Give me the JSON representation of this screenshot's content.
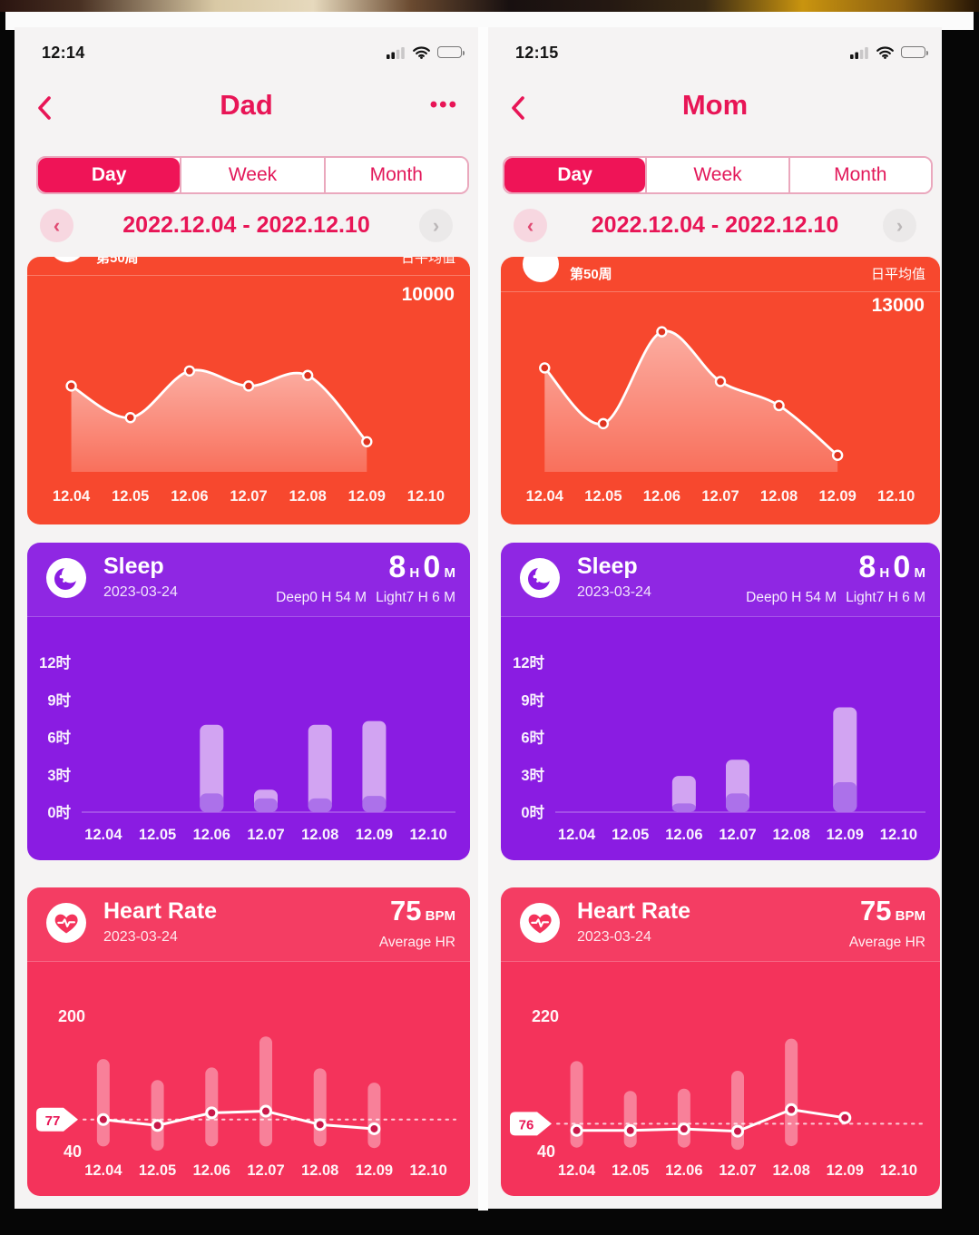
{
  "colors": {
    "accent": "#e81556",
    "tab_active_bg": "#ef1457",
    "steps_card_bg": "#f7482e",
    "sleep_card_bg": "#8a1ce2",
    "sleep_bar_light": "#d5aaf3",
    "sleep_bar_deep": "#aa6fe9",
    "hr_card_bg": "#f4335b",
    "steps_point_fill": "#de3420",
    "hr_point_fill": "#c9194a"
  },
  "panels": [
    {
      "time": "12:14",
      "nav_title": "Dad",
      "menu": "•••",
      "tabs": [
        {
          "label": "Day"
        },
        {
          "label": "Week"
        },
        {
          "label": "Month"
        }
      ],
      "date_range": "2022.12.04 - 2022.12.10",
      "steps": {
        "week_label": "第50周",
        "avg_label": "日平均值",
        "avg_value": "10000"
      },
      "sleep": {
        "title": "Sleep",
        "date": "2023-03-24",
        "hours": "8",
        "h_unit": " H ",
        "minutes": "0",
        "m_unit": " M",
        "deep": "Deep0 H 54 M",
        "light": "Light7 H 6 M"
      },
      "hr": {
        "title": "Heart Rate",
        "date": "2023-03-24",
        "value": "75",
        "unit": " BPM",
        "sub": "Average HR"
      }
    },
    {
      "time": "12:15",
      "nav_title": "Mom",
      "tabs": [
        {
          "label": "Day"
        },
        {
          "label": "Week"
        },
        {
          "label": "Month"
        }
      ],
      "date_range": "2022.12.04 - 2022.12.10",
      "steps": {
        "week_label": "第50周",
        "avg_label": "日平均值",
        "avg_value": "13000"
      },
      "sleep": {
        "title": "Sleep",
        "date": "2023-03-24",
        "hours": "8",
        "h_unit": " H ",
        "minutes": "0",
        "m_unit": " M",
        "deep": "Deep0 H 54 M",
        "light": "Light7 H 6 M"
      },
      "hr": {
        "title": "Heart Rate",
        "date": "2023-03-24",
        "value": "75",
        "unit": " BPM",
        "sub": "Average HR"
      }
    }
  ],
  "chart_data": [
    {
      "id": "steps-dad",
      "type": "area",
      "title": "第50周",
      "legend_right": "日平均值",
      "daily_average": 10000,
      "categories": [
        "12.04",
        "12.05",
        "12.06",
        "12.07",
        "12.08",
        "12.09",
        "12.10"
      ],
      "series": [
        {
          "name": "steps (no y-axis; % of plot height, estimated)",
          "values_pct": [
            57,
            36,
            67,
            57,
            64,
            20,
            null
          ]
        }
      ],
      "grid": false
    },
    {
      "id": "steps-mom",
      "type": "area",
      "title": "第50周",
      "legend_right": "日平均值",
      "daily_average": 13000,
      "categories": [
        "12.04",
        "12.05",
        "12.06",
        "12.07",
        "12.08",
        "12.09",
        "12.10"
      ],
      "series": [
        {
          "name": "steps (no y-axis; % of plot height, estimated)",
          "values_pct": [
            69,
            32,
            93,
            60,
            44,
            11,
            null
          ]
        }
      ],
      "grid": false
    },
    {
      "id": "sleep-dad",
      "type": "bar",
      "stacked": true,
      "categories": [
        "12.04",
        "12.05",
        "12.06",
        "12.07",
        "12.08",
        "12.09",
        "12.10"
      ],
      "series": [
        {
          "name": "total_sleep_hours",
          "values": [
            null,
            null,
            7.0,
            1.8,
            7.0,
            7.3,
            null
          ]
        },
        {
          "name": "deep_sleep_hours",
          "values": [
            null,
            null,
            1.5,
            1.1,
            1.1,
            1.3,
            null
          ]
        }
      ],
      "y_ticks_hours": [
        0,
        3,
        6,
        9,
        12
      ],
      "y_tick_suffix": "时",
      "y_max": 13.5
    },
    {
      "id": "sleep-mom",
      "type": "bar",
      "stacked": true,
      "categories": [
        "12.04",
        "12.05",
        "12.06",
        "12.07",
        "12.08",
        "12.09",
        "12.10"
      ],
      "series": [
        {
          "name": "total_sleep_hours",
          "values": [
            null,
            null,
            2.9,
            4.2,
            null,
            8.4,
            null
          ]
        },
        {
          "name": "deep_sleep_hours",
          "values": [
            null,
            null,
            0.7,
            1.5,
            null,
            2.4,
            null
          ]
        }
      ],
      "y_ticks_hours": [
        0,
        3,
        6,
        9,
        12
      ],
      "y_tick_suffix": "时",
      "y_max": 13.5
    },
    {
      "id": "hr-dad",
      "type": "line",
      "subtype": "range-line",
      "categories": [
        "12.04",
        "12.05",
        "12.06",
        "12.07",
        "12.08",
        "12.09",
        "12.10"
      ],
      "ylim": [
        40,
        200
      ],
      "avg_badge": 77,
      "line_bpm": [
        77,
        70,
        85,
        87,
        71,
        66,
        null
      ],
      "range_bpm": [
        [
          45,
          149
        ],
        [
          40,
          124
        ],
        [
          45,
          139
        ],
        [
          45,
          176
        ],
        [
          45,
          138
        ],
        [
          43,
          121
        ],
        null
      ]
    },
    {
      "id": "hr-mom",
      "type": "line",
      "subtype": "range-line",
      "categories": [
        "12.04",
        "12.05",
        "12.06",
        "12.07",
        "12.08",
        "12.09",
        "12.10"
      ],
      "ylim": [
        40,
        220
      ],
      "avg_badge": 76,
      "line_bpm": [
        67,
        67,
        69,
        66,
        95,
        84,
        null
      ],
      "range_bpm": [
        [
          44,
          160
        ],
        [
          44,
          120
        ],
        [
          44,
          123
        ],
        [
          41,
          147
        ],
        [
          46,
          190
        ],
        null,
        null
      ]
    }
  ]
}
